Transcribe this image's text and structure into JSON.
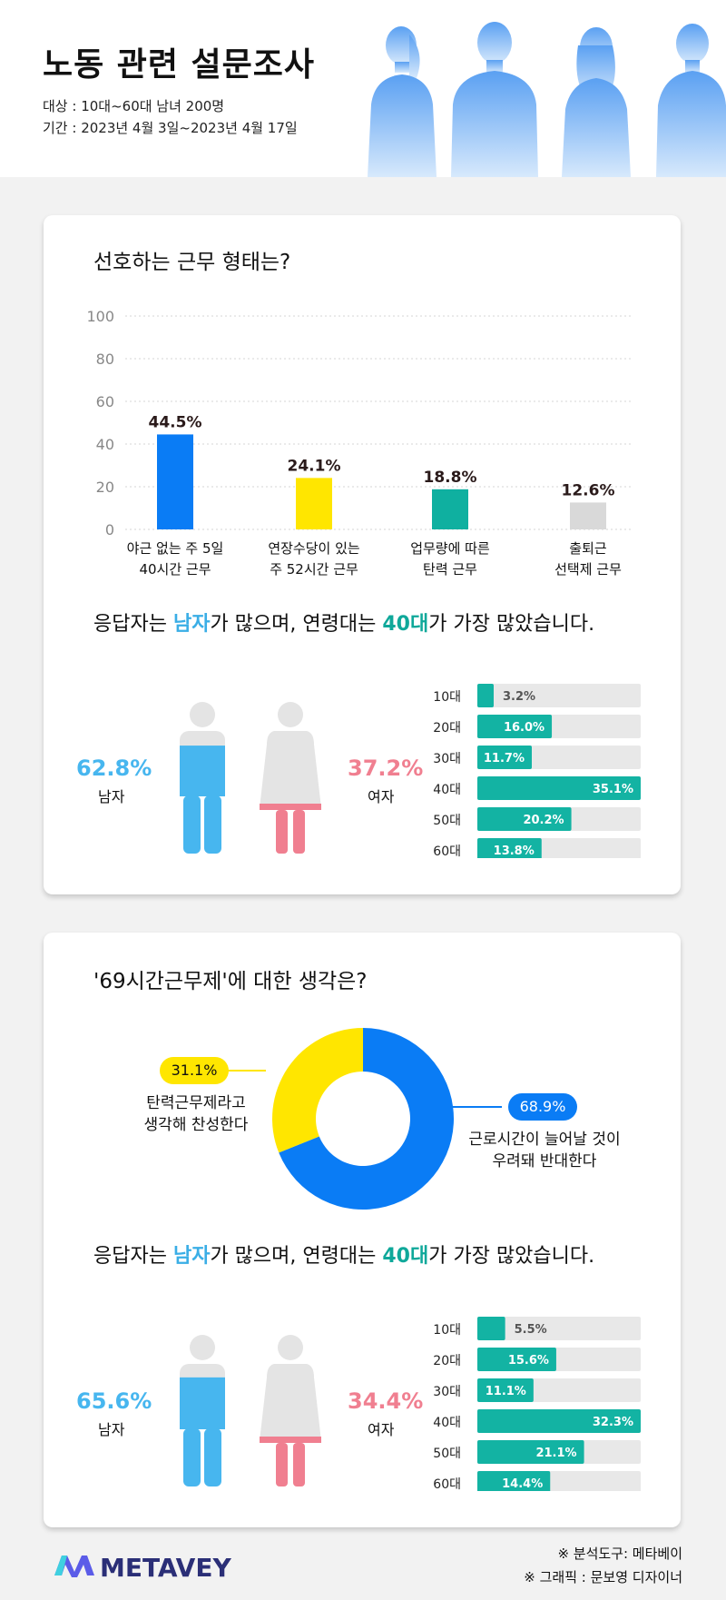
{
  "header": {
    "title": "노동 관련 설문조사",
    "target": "대상 : 10대~60대 남녀 200명",
    "period": "기간 : 2023년 4월 3일~2023년 4월 17일"
  },
  "section1": {
    "question": "선호하는 근무 형태는?",
    "statement": {
      "pre": "응답자는 ",
      "hl1": "남자",
      "mid": "가 많으며, 연령대는 ",
      "hl2": "40대",
      "post": "가 가장 많았습니다."
    },
    "male": {
      "pct": "62.8%",
      "label": "남자",
      "value": 62.8
    },
    "female": {
      "pct": "37.2%",
      "label": "여자",
      "value": 37.2
    }
  },
  "section2": {
    "question": "'69시간근무제'에 대한 생각은?",
    "statement": {
      "pre": "응답자는 ",
      "hl1": "남자",
      "mid": "가 많으며, 연령대는 ",
      "hl2": "40대",
      "post": "가 가장 많았습니다."
    },
    "pro": {
      "pct": "31.1%",
      "line1": "탄력근무제라고",
      "line2": "생각해 찬성한다"
    },
    "con": {
      "pct": "68.9%",
      "line1": "근로시간이 늘어날 것이",
      "line2": "우려돼 반대한다"
    },
    "male": {
      "pct": "65.6%",
      "label": "남자",
      "value": 65.6
    },
    "female": {
      "pct": "34.4%",
      "label": "여자",
      "value": 34.4
    }
  },
  "footer": {
    "tool": "※ 분석도구: 메타베이",
    "graphic": "※ 그래픽 : 문보영 디자이너",
    "logo": "METAVEY"
  },
  "colors": {
    "blue": "#0a7cf5",
    "yellow": "#ffe600",
    "teal": "#0fb0a0",
    "gray": "#d9d9d9",
    "male": "#47b6ef",
    "female": "#f07f90",
    "age_bar": "#13b3a3"
  },
  "chart_data": [
    {
      "type": "bar",
      "categories": [
        "야근 없는 주 5일\n40시간 근무",
        "연장수당이 있는\n주 52시간 근무",
        "업무량에 따른\n탄력 근무",
        "출퇴근\n선택제 근무"
      ],
      "values": [
        44.5,
        24.1,
        18.8,
        12.6
      ],
      "data_labels": [
        "44.5%",
        "24.1%",
        "18.8%",
        "12.6%"
      ],
      "colors": [
        "#0a7cf5",
        "#ffe600",
        "#0fb0a0",
        "#d9d9d9"
      ],
      "yticks": [
        "0",
        "20",
        "40",
        "60",
        "80",
        "100"
      ],
      "ylim": [
        0,
        100
      ],
      "grid": true
    },
    {
      "type": "bar",
      "orientation": "horizontal",
      "categories": [
        "10대",
        "20대",
        "30대",
        "40대",
        "50대",
        "60대"
      ],
      "values": [
        3.2,
        16.0,
        11.7,
        35.1,
        20.2,
        13.8
      ],
      "data_labels": [
        "3.2%",
        "16.0%",
        "11.7%",
        "35.1%",
        "20.2%",
        "13.8%"
      ]
    },
    {
      "type": "pie",
      "donut": true,
      "labels": [
        "31.1%",
        "68.9%"
      ],
      "values": [
        31.1,
        68.9
      ],
      "colors": [
        "#ffe600",
        "#0a7cf5"
      ]
    },
    {
      "type": "bar",
      "orientation": "horizontal",
      "categories": [
        "10대",
        "20대",
        "30대",
        "40대",
        "50대",
        "60대"
      ],
      "values": [
        5.5,
        15.6,
        11.1,
        32.3,
        21.1,
        14.4
      ],
      "data_labels": [
        "5.5%",
        "15.6%",
        "11.1%",
        "32.3%",
        "21.1%",
        "14.4%"
      ]
    }
  ]
}
